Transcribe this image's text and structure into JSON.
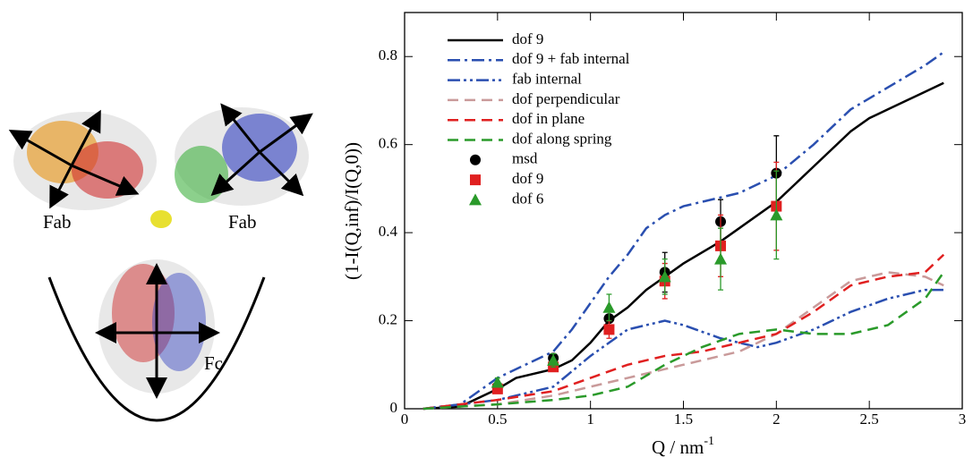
{
  "illustration_labels": [
    "Fab",
    "Fab",
    "Fc"
  ],
  "chart_data": {
    "type": "line",
    "xlabel": "Q / nm",
    "xlabel_sup": "-1",
    "ylabel": "(1-I(Q,inf)/I(Q,0))",
    "xlim": [
      0,
      3
    ],
    "ylim": [
      0,
      0.9
    ],
    "xticks": [
      0,
      0.5,
      1,
      1.5,
      2,
      2.5,
      3
    ],
    "yticks": [
      0,
      0.2,
      0.4,
      0.6,
      0.8
    ],
    "legend": "upper-left",
    "series": [
      {
        "name": "dof 9",
        "style": "line",
        "color": "#000000",
        "dash": "solid",
        "x": [
          0.1,
          0.3,
          0.5,
          0.6,
          0.8,
          0.9,
          1.0,
          1.1,
          1.2,
          1.3,
          1.4,
          1.5,
          1.7,
          1.8,
          2.0,
          2.2,
          2.4,
          2.5,
          2.6,
          2.8,
          2.9
        ],
        "values": [
          0,
          0.005,
          0.045,
          0.07,
          0.09,
          0.11,
          0.15,
          0.2,
          0.23,
          0.27,
          0.3,
          0.33,
          0.38,
          0.41,
          0.47,
          0.55,
          0.63,
          0.66,
          0.68,
          0.72,
          0.74
        ]
      },
      {
        "name": "dof 9 + fab internal",
        "style": "line",
        "color": "#2a4fb0",
        "dash": "dashdot",
        "x": [
          0.1,
          0.3,
          0.5,
          0.7,
          0.8,
          0.9,
          1.0,
          1.1,
          1.2,
          1.3,
          1.4,
          1.5,
          1.7,
          1.8,
          2.0,
          2.2,
          2.4,
          2.6,
          2.8,
          2.9
        ],
        "values": [
          0,
          0.01,
          0.07,
          0.11,
          0.13,
          0.18,
          0.24,
          0.3,
          0.35,
          0.41,
          0.44,
          0.46,
          0.48,
          0.49,
          0.53,
          0.6,
          0.68,
          0.73,
          0.78,
          0.81
        ]
      },
      {
        "name": "fab internal",
        "style": "line",
        "color": "#2a4fb0",
        "dash": "dashdotdot",
        "x": [
          0.1,
          0.5,
          0.8,
          1.0,
          1.2,
          1.4,
          1.5,
          1.7,
          1.9,
          2.0,
          2.2,
          2.4,
          2.6,
          2.8,
          2.9
        ],
        "values": [
          0,
          0.02,
          0.05,
          0.12,
          0.18,
          0.2,
          0.19,
          0.16,
          0.14,
          0.15,
          0.18,
          0.22,
          0.25,
          0.27,
          0.27
        ]
      },
      {
        "name": "dof perpendicular",
        "style": "line",
        "color": "#c99a9a",
        "dash": "dash",
        "x": [
          0.1,
          0.5,
          0.8,
          1.0,
          1.2,
          1.4,
          1.6,
          1.8,
          2.0,
          2.2,
          2.4,
          2.6,
          2.8,
          2.9
        ],
        "values": [
          0,
          0.01,
          0.03,
          0.05,
          0.07,
          0.09,
          0.11,
          0.13,
          0.17,
          0.23,
          0.29,
          0.31,
          0.3,
          0.28
        ]
      },
      {
        "name": "dof in plane",
        "style": "line",
        "color": "#e02020",
        "dash": "dash",
        "x": [
          0.1,
          0.5,
          0.8,
          1.0,
          1.2,
          1.4,
          1.6,
          1.8,
          2.0,
          2.2,
          2.4,
          2.6,
          2.8,
          2.9
        ],
        "values": [
          0,
          0.02,
          0.04,
          0.07,
          0.1,
          0.12,
          0.13,
          0.15,
          0.17,
          0.22,
          0.28,
          0.3,
          0.31,
          0.35
        ]
      },
      {
        "name": "dof along spring",
        "style": "line",
        "color": "#2a9a2a",
        "dash": "dash",
        "x": [
          0.1,
          0.5,
          0.8,
          1.0,
          1.2,
          1.4,
          1.6,
          1.8,
          2.0,
          2.2,
          2.4,
          2.6,
          2.8,
          2.9
        ],
        "values": [
          0,
          0.01,
          0.02,
          0.03,
          0.05,
          0.1,
          0.14,
          0.17,
          0.18,
          0.17,
          0.17,
          0.19,
          0.25,
          0.31
        ]
      },
      {
        "name": "msd",
        "style": "points",
        "marker": "circle",
        "color": "#000000",
        "x": [
          0.5,
          0.8,
          1.1,
          1.4,
          1.7,
          2.0
        ],
        "values": [
          0.05,
          0.115,
          0.205,
          0.31,
          0.425,
          0.535
        ],
        "errors": [
          0.005,
          0.01,
          0.02,
          0.045,
          0.05,
          0.085
        ]
      },
      {
        "name": "dof 9",
        "style": "points",
        "marker": "square",
        "color": "#e02020",
        "x": [
          0.5,
          0.8,
          1.1,
          1.4,
          1.7,
          2.0
        ],
        "values": [
          0.045,
          0.095,
          0.18,
          0.29,
          0.37,
          0.46
        ],
        "errors": [
          0.005,
          0.01,
          0.02,
          0.04,
          0.07,
          0.1
        ]
      },
      {
        "name": "dof 6",
        "style": "points",
        "marker": "triangle",
        "color": "#2a9a2a",
        "x": [
          0.5,
          0.8,
          1.1,
          1.4,
          1.7,
          2.0
        ],
        "values": [
          0.06,
          0.11,
          0.23,
          0.3,
          0.34,
          0.44
        ],
        "errors": [
          0.01,
          0.015,
          0.03,
          0.04,
          0.07,
          0.1
        ]
      }
    ]
  }
}
